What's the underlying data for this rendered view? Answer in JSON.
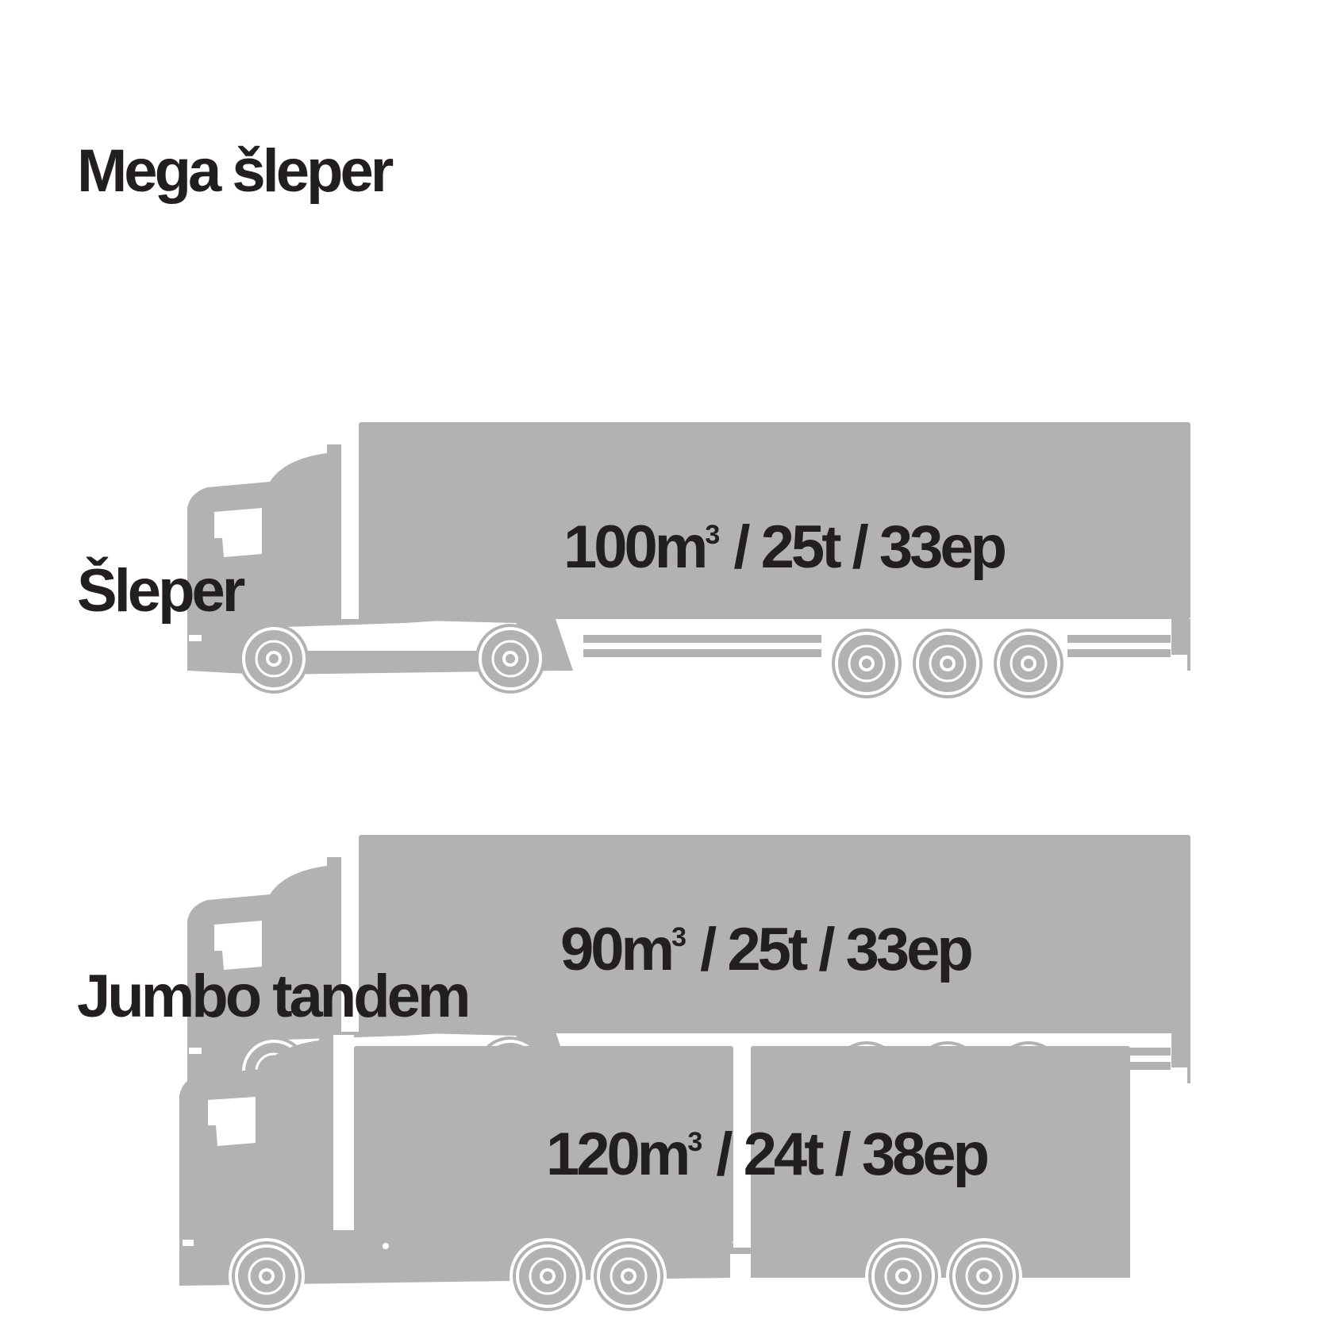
{
  "trucks": [
    {
      "id": "mega-sleper",
      "name": "Mega šleper",
      "capacity": {
        "volume": "100m",
        "volume_sup": "3",
        "weight": " / 25t / 33ep"
      },
      "axles": {
        "tractor": 2,
        "trailer": 3
      },
      "trailers": 1
    },
    {
      "id": "sleper",
      "name": "Šleper",
      "capacity": {
        "volume": "90m",
        "volume_sup": "3",
        "weight": " / 25t / 33ep"
      },
      "axles": {
        "tractor": 2,
        "trailer": 3
      },
      "trailers": 1
    },
    {
      "id": "jumbo-tandem",
      "name": "Jumbo tandem",
      "capacity": {
        "volume": "120m",
        "volume_sup": "3",
        "weight": " / 24t / 38ep"
      },
      "axles": {
        "truck": 3,
        "trailer": 2
      },
      "trailers": 2
    }
  ],
  "colors": {
    "vehicle": "#b2b2b2",
    "text": "#231f20",
    "background": "#ffffff"
  }
}
